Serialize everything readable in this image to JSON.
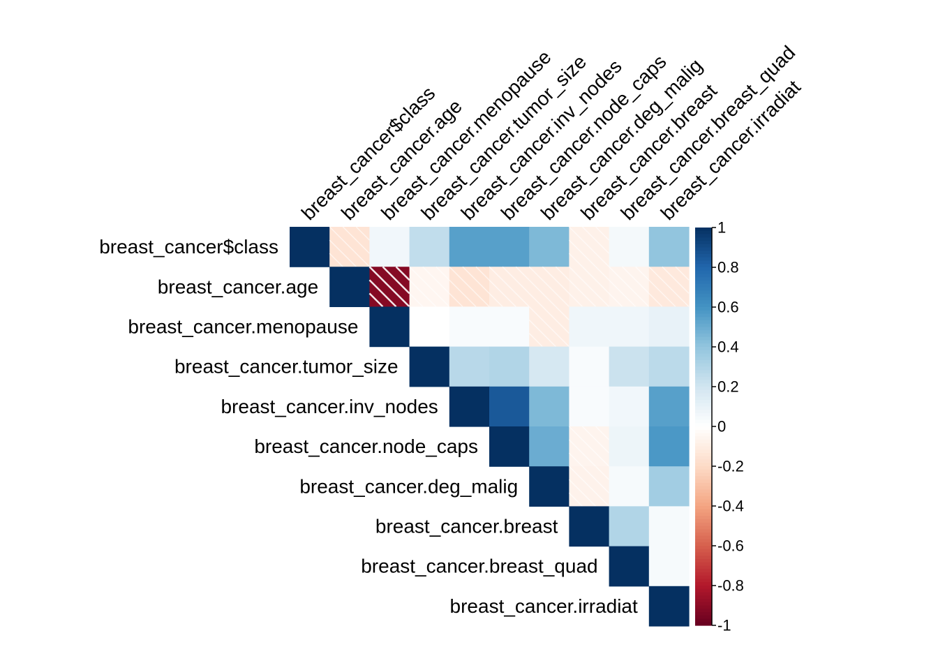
{
  "chart_data": {
    "type": "heatmap",
    "layout": "upper-triangular correlation matrix",
    "labels": [
      "breast_cancer$class",
      "breast_cancer.age",
      "breast_cancer.menopause",
      "breast_cancer.tumor_size",
      "breast_cancer.inv_nodes",
      "breast_cancer.node_caps",
      "breast_cancer.deg_malig",
      "breast_cancer.breast",
      "breast_cancer.breast_quad",
      "breast_cancer.irradiat"
    ],
    "matrix": [
      [
        1,
        -0.15,
        0.06,
        0.25,
        0.55,
        0.55,
        0.45,
        -0.08,
        0.05,
        0.4
      ],
      [
        null,
        1,
        -0.92,
        -0.05,
        -0.15,
        -0.1,
        -0.1,
        -0.08,
        -0.06,
        -0.12
      ],
      [
        null,
        null,
        1,
        0.0,
        0.03,
        0.03,
        -0.1,
        0.07,
        0.07,
        0.1
      ],
      [
        null,
        null,
        null,
        1,
        0.28,
        0.3,
        0.18,
        0.03,
        0.22,
        0.27
      ],
      [
        null,
        null,
        null,
        null,
        1,
        0.85,
        0.45,
        0.03,
        0.06,
        0.55
      ],
      [
        null,
        null,
        null,
        null,
        null,
        1,
        0.5,
        -0.06,
        0.08,
        0.58
      ],
      [
        null,
        null,
        null,
        null,
        null,
        null,
        1,
        -0.07,
        0.04,
        0.35
      ],
      [
        null,
        null,
        null,
        null,
        null,
        null,
        null,
        1,
        0.3,
        0.04
      ],
      [
        null,
        null,
        null,
        null,
        null,
        null,
        null,
        null,
        1,
        0.04
      ],
      [
        null,
        null,
        null,
        null,
        null,
        null,
        null,
        null,
        null,
        1
      ]
    ],
    "colorbar": {
      "range": [
        -1,
        1
      ],
      "ticks": [
        "1",
        "0.8",
        "0.6",
        "0.4",
        "0.2",
        "0",
        "-0.2",
        "-0.4",
        "-0.6",
        "-0.8",
        "-1"
      ],
      "colors": [
        "#67001F",
        "#B2182B",
        "#D6604D",
        "#F4A582",
        "#FDDBC7",
        "#FFFFFF",
        "#D1E5F0",
        "#92C5DE",
        "#4393C3",
        "#2166AC",
        "#053061"
      ]
    },
    "negative_cells_hatched": true
  }
}
